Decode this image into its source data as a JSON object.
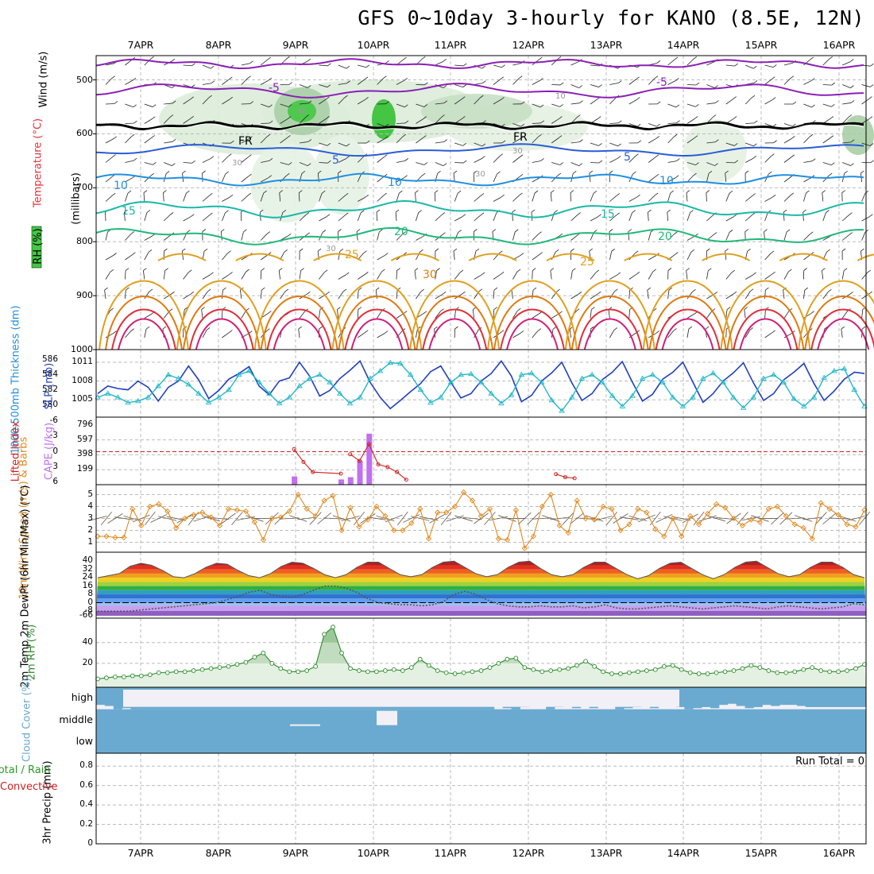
{
  "title": "GFS 0~10day 3-hourly for KANO (8.5E, 12N)",
  "run_total": "Run Total = 0",
  "colors": {
    "purple": "#8b1fb5",
    "freezing": "#000000",
    "blue": "#2a5cd6",
    "sky": "#1f8fe0",
    "teal": "#19b8a8",
    "green": "#1fb87a",
    "gold": "#e0a020",
    "orange": "#e07a10",
    "red": "#e0303a",
    "magenta": "#d0207a",
    "slp": "#1f3fc0",
    "thickness": "#22b8c8",
    "cape": "#c070f0",
    "li": "#d02020",
    "wind": "#e08a20",
    "rh": "#2a8a2a",
    "cloud": "#6aaad0"
  },
  "chart_data": [
    {
      "type": "contour",
      "name": "pressure-level cross section",
      "dates": [
        "7APR",
        "8APR",
        "9APR",
        "10APR",
        "11APR",
        "12APR",
        "13APR",
        "14APR",
        "15APR",
        "16APR"
      ],
      "ylabel_wind": "Wind (m/s)",
      "ylabel_temp": "Temperature (°C)",
      "ylabel_rh": "RH (%)",
      "ylabel_p": "(millibars)",
      "y_ticks": [
        "500",
        "600",
        "700",
        "800",
        "900",
        "1000"
      ],
      "ylim": [
        1000,
        450
      ],
      "contour_labels": [
        "-5",
        "-5",
        "FR",
        "FR",
        "5",
        "5",
        "10",
        "10",
        "10",
        "15",
        "15",
        "20",
        "20",
        "25",
        "25",
        "30"
      ],
      "rh_labels": [
        "30",
        "30",
        "30",
        "30",
        "10",
        "30"
      ]
    },
    {
      "type": "line",
      "name": "thickness and sea level pressure",
      "ylabel_left": "1000-500mb Thickness (dm)",
      "ylabel_right": "SLP (mb)",
      "left_ticks": [
        "586",
        "584",
        "582",
        "580"
      ],
      "right_ticks": [
        "1011",
        "1008",
        "1005"
      ],
      "series": [
        {
          "name": "SLP",
          "values": [
            1006.0,
            1007.2,
            1006.8,
            1006.6,
            1008.0,
            1007.0,
            1004.8,
            1007.0,
            1008.0,
            1010.4,
            1008.2,
            1005.2,
            1006.5,
            1008.3,
            1009.2,
            1010.3,
            1007.2,
            1005.8,
            1008.0,
            1008.5,
            1011.0,
            1008.8,
            1005.6,
            1006.5,
            1008.4,
            1009.7,
            1011.2,
            1007.8,
            1005.4,
            1003.6,
            1004.9,
            1006.3,
            1007.6,
            1009.5,
            1010.4,
            1007.8,
            1005.3,
            1006.0,
            1008.0,
            1009.2,
            1011.2,
            1008.8,
            1004.7,
            1005.7,
            1008.0,
            1009.3,
            1011.0,
            1007.7,
            1004.9,
            1006.0,
            1008.2,
            1009.4,
            1011.1,
            1007.8,
            1004.8,
            1005.9,
            1008.3,
            1009.4,
            1011.0,
            1007.8,
            1004.6,
            1006.0,
            1008.0,
            1009.3,
            1010.9,
            1007.7,
            1004.9,
            1006.0,
            1008.2,
            1009.4,
            1010.8,
            1007.6,
            1004.9,
            1006.4,
            1008.3,
            1009.4,
            1009.2
          ]
        },
        {
          "name": "Thickness",
          "values": [
            581.0,
            581.5,
            581.0,
            580.3,
            580.5,
            581.0,
            582.5,
            584.0,
            583.5,
            582.7,
            581.5,
            580.3,
            581.0,
            582.0,
            584.0,
            584.5,
            583.0,
            581.5,
            580.2,
            581.0,
            582.5,
            583.5,
            584.0,
            583.0,
            581.5,
            580.2,
            581.0,
            583.5,
            584.5,
            585.6,
            585.5,
            584.0,
            582.0,
            580.3,
            581.0,
            583.0,
            584.0,
            584.1,
            583.0,
            581.5,
            580.2,
            581.3,
            584.0,
            584.2,
            583.0,
            580.6,
            579.2,
            581.0,
            583.5,
            584.0,
            583.0,
            581.2,
            579.8,
            581.2,
            583.5,
            584.0,
            583.0,
            581.0,
            579.8,
            581.0,
            583.5,
            584.2,
            583.0,
            581.0,
            579.6,
            581.0,
            583.5,
            584.0,
            583.0,
            580.8,
            579.8,
            581.0,
            583.6,
            584.5,
            584.8,
            582.0,
            579.8
          ]
        }
      ]
    },
    {
      "type": "bar",
      "name": "lifted index and CAPE",
      "ylabel_left": "Lifted Index",
      "ylabel_right": "CAPE (J/kg)",
      "left_ticks": [
        "-6",
        "-3",
        "0",
        "3",
        "6"
      ],
      "right_ticks": [
        "796",
        "597",
        "398",
        "199"
      ],
      "series": [
        {
          "name": "CAPE",
          "values": [
            0,
            0,
            0,
            0,
            0,
            0,
            0,
            0,
            0,
            0,
            0,
            0,
            0,
            0,
            0,
            0,
            0,
            0,
            0,
            0,
            0,
            30,
            0,
            0,
            0,
            0,
            0,
            0,
            0,
            0,
            0,
            0,
            0,
            0,
            0,
            0,
            0,
            0,
            0,
            0,
            0,
            0,
            0,
            0,
            0,
            0,
            0,
            0,
            0,
            0,
            0,
            0,
            0,
            0,
            0,
            0,
            0,
            0,
            0,
            0,
            0,
            0,
            0,
            0,
            0,
            0,
            0,
            0,
            0,
            0,
            0,
            0,
            0,
            0,
            0,
            0,
            0,
            0,
            0,
            0,
            0,
            0,
            0
          ]
        },
        {
          "name": "CAPE_main",
          "points": [
            [
              21,
              110
            ],
            [
              26,
              70
            ],
            [
              27,
              100
            ],
            [
              28,
              320
            ],
            [
              29,
              680
            ]
          ]
        },
        {
          "name": "LI",
          "points": [
            [
              21,
              -0.5
            ],
            [
              22,
              2.0
            ],
            [
              23,
              4.0
            ],
            [
              26,
              4.3
            ],
            [
              27,
              0.5
            ],
            [
              28,
              1.8
            ],
            [
              29,
              -1.5
            ],
            [
              30,
              2.5
            ],
            [
              31,
              3.0
            ],
            [
              32,
              4.0
            ],
            [
              33,
              5.5
            ],
            [
              49,
              4.4
            ],
            [
              50,
              5.0
            ],
            [
              51,
              5.2
            ]
          ]
        }
      ]
    },
    {
      "type": "line",
      "name": "10m wind",
      "ylabel": "10m Wind Speed (m/s) & Barbs",
      "y_ticks": [
        "5",
        "4",
        "3",
        "2",
        "1"
      ],
      "ylim": [
        0.5,
        5.5
      ],
      "series": [
        {
          "name": "Wind Speed",
          "values": [
            1.5,
            1.5,
            1.4,
            1.4,
            3.8,
            2.4,
            4.0,
            4.2,
            3.6,
            2.2,
            3.0,
            3.3,
            3.5,
            3.1,
            2.4,
            3.8,
            3.7,
            3.6,
            2.7,
            1.2,
            3.0,
            3.1,
            3.6,
            5.0,
            3.8,
            3.2,
            4.5,
            4.9,
            2.0,
            3.9,
            2.3,
            2.9,
            4.0,
            3.2,
            2.0,
            2.0,
            2.6,
            3.8,
            1.3,
            3.5,
            3.5,
            4.0,
            5.2,
            4.5,
            3.2,
            3.8,
            1.3,
            1.2,
            3.7,
            0.5,
            1.5,
            4.0,
            5.0,
            2.4,
            1.8,
            4.5,
            3.0,
            2.9,
            4.0,
            3.8,
            2.0,
            2.5,
            3.8,
            3.5,
            2.1,
            1.5,
            3.0,
            1.5,
            3.2,
            2.5,
            3.4,
            4.2,
            3.9,
            3.0,
            2.4,
            2.9,
            2.7,
            3.8,
            4.0,
            3.2,
            2.5,
            2.2,
            1.3,
            4.3,
            3.8,
            3.3,
            2.5,
            2.3,
            3.7
          ]
        }
      ]
    },
    {
      "type": "area",
      "name": "2m temperature and dewpoint",
      "ylabel": "2m Temp 2m DewPt (6hr Min/Max) (°C)",
      "y_ticks": [
        "40",
        "32",
        "24",
        "16",
        "8",
        "0",
        "-8",
        "-66"
      ],
      "series": [
        {
          "name": "Temp",
          "values": [
            24,
            26,
            28,
            35,
            38,
            36,
            31,
            25,
            24,
            28,
            34,
            38,
            37,
            31,
            26,
            24,
            28,
            35,
            39,
            38,
            33,
            27,
            24,
            27,
            34,
            39,
            39,
            33,
            27,
            25,
            27,
            34,
            39,
            40,
            34,
            28,
            25,
            27,
            34,
            39,
            40,
            33,
            27,
            25,
            27,
            34,
            39,
            39,
            33,
            27,
            23,
            26,
            33,
            38,
            39,
            33,
            27,
            23,
            27,
            34,
            39,
            40,
            34,
            28,
            25,
            27,
            34,
            39,
            39,
            34,
            27,
            24
          ]
        },
        {
          "name": "DewPt",
          "values": [
            -11,
            -11,
            -11,
            -10,
            -7,
            -6,
            -5,
            -4,
            -3,
            -2,
            -1,
            0,
            3,
            6,
            10,
            12,
            8,
            6,
            5,
            8,
            12,
            16,
            16,
            14,
            10,
            4,
            0,
            -1,
            -2,
            -2,
            -3,
            -2,
            1,
            8,
            11,
            8,
            3,
            -1,
            -3,
            -4,
            -4,
            -3,
            -4,
            -4,
            -3,
            -5,
            -4,
            -2,
            -5,
            -6,
            -6,
            -5,
            -4,
            -3,
            -4,
            -5,
            -6,
            -5,
            -4,
            -3,
            -4,
            -5,
            -6,
            -4,
            -3,
            -4,
            -5,
            -6,
            -5,
            -4,
            -1,
            -2
          ]
        }
      ]
    },
    {
      "type": "area",
      "name": "2m relative humidity",
      "ylabel": "2m RH (%)",
      "y_ticks": [
        "40",
        "20"
      ],
      "ylim": [
        0,
        62
      ],
      "series": [
        {
          "name": "RH",
          "values": [
            5,
            6,
            7,
            7,
            8,
            8,
            9,
            11,
            11,
            12,
            12,
            13,
            14,
            15,
            16,
            17,
            19,
            21,
            26,
            30,
            20,
            15,
            12,
            12,
            13,
            17,
            48,
            55,
            30,
            15,
            13,
            12,
            12,
            13,
            14,
            13,
            16,
            24,
            18,
            13,
            11,
            10,
            11,
            12,
            13,
            16,
            20,
            24,
            25,
            16,
            14,
            12,
            13,
            14,
            15,
            18,
            22,
            17,
            12,
            10,
            10,
            11,
            12,
            13,
            14,
            17,
            18,
            14,
            11,
            10,
            10,
            11,
            12,
            13,
            15,
            18,
            16,
            13,
            11,
            11,
            12,
            14,
            16,
            13,
            12,
            12,
            13,
            15,
            19
          ]
        }
      ]
    },
    {
      "type": "heatmap",
      "name": "cloud cover",
      "ylabel": "Cloud Cover (%)",
      "rows": [
        "high",
        "middle",
        "low"
      ],
      "values_high": [
        80,
        85,
        100,
        95,
        100,
        100,
        100,
        100,
        100,
        100,
        100,
        100,
        100,
        100,
        100,
        100,
        100,
        100,
        100,
        100,
        100,
        100,
        100,
        100,
        100,
        100,
        100,
        100,
        100,
        100,
        100,
        100,
        100,
        100,
        100,
        100,
        100,
        100,
        100,
        100,
        100,
        100,
        100,
        100,
        100,
        100,
        85,
        95,
        100,
        90,
        85,
        80,
        100,
        90,
        85,
        95,
        85,
        95,
        80,
        85,
        100,
        95,
        90,
        80,
        95,
        85,
        80,
        90,
        100,
        95,
        90,
        95,
        80,
        75,
        85,
        95,
        90,
        80,
        85,
        80,
        80,
        85,
        90,
        90,
        90,
        90,
        90,
        90,
        90
      ],
      "values_middle": [
        100,
        100,
        100,
        100,
        100,
        100,
        100,
        100,
        100,
        100,
        100,
        100,
        100,
        100,
        100,
        100,
        100,
        100,
        100,
        100,
        100,
        100,
        100,
        100,
        100,
        100,
        100,
        100,
        100,
        100,
        100,
        100,
        100,
        100,
        100,
        100,
        100,
        100,
        100,
        100,
        100,
        100,
        100,
        100,
        100,
        100,
        100,
        100,
        100,
        100,
        100,
        100,
        100,
        100,
        100,
        100,
        100,
        100,
        100,
        100,
        100,
        100,
        100,
        100,
        100,
        100,
        100,
        100,
        100,
        100,
        100,
        100,
        100,
        100,
        100,
        100,
        100,
        100,
        100,
        100,
        100,
        100,
        100,
        100,
        100,
        100,
        100,
        100,
        100
      ],
      "values_low": [
        100,
        100,
        100,
        100,
        100,
        100,
        100,
        100,
        100,
        100,
        100,
        100,
        100,
        100,
        100,
        100,
        100,
        100,
        100,
        100,
        100,
        100,
        100,
        100,
        100,
        100,
        100,
        100,
        100,
        100,
        100,
        100,
        100,
        100,
        100,
        100,
        100,
        100,
        100,
        100,
        100,
        100,
        100,
        100,
        100,
        100,
        100,
        100,
        100,
        100,
        100,
        100,
        100,
        100,
        100,
        100,
        100,
        100,
        100,
        100,
        100,
        100,
        100,
        100,
        100,
        100,
        100,
        100,
        100,
        100,
        100,
        100,
        100,
        100,
        100,
        100,
        100,
        100,
        100,
        100,
        100,
        100,
        100,
        100,
        100,
        100,
        100,
        100,
        100
      ]
    },
    {
      "type": "bar",
      "name": "3hr precipitation",
      "ylabel_total": "Total / Rain",
      "ylabel_conv": "Convective",
      "ylabel": "3hr Precip (mm)",
      "y_ticks": [
        "0.8",
        "0.6",
        "0.4",
        "0.2",
        "0"
      ],
      "ylim": [
        0,
        0.9
      ],
      "values": []
    }
  ]
}
